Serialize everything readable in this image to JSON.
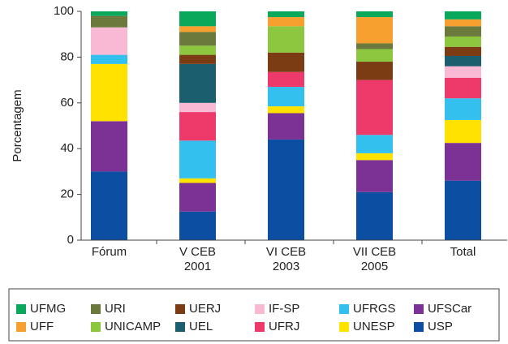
{
  "chart_data": {
    "type": "stacked_bar",
    "ylabel": "Porcentagem",
    "categories": [
      "Fórum",
      "V CEB 2001",
      "VI CEB 2003",
      "VII CEB 2005",
      "Total"
    ],
    "ylim": [
      0,
      100
    ],
    "yticks": [
      0,
      20,
      40,
      60,
      80,
      100
    ],
    "series": [
      {
        "name": "USP",
        "color": "#0b4ea2",
        "values": [
          30,
          12.5,
          44,
          21,
          26
        ]
      },
      {
        "name": "UFSCar",
        "color": "#7b3294",
        "values": [
          22,
          12.5,
          11.5,
          14,
          16.5
        ]
      },
      {
        "name": "UNESP",
        "color": "#ffe200",
        "values": [
          25,
          2,
          3,
          3,
          10
        ]
      },
      {
        "name": "UFRGS",
        "color": "#33c0ee",
        "values": [
          4,
          16.5,
          8.5,
          8,
          9.5
        ]
      },
      {
        "name": "UFRJ",
        "color": "#ee3a6a",
        "values": [
          0,
          12.5,
          6.5,
          24,
          9
        ]
      },
      {
        "name": "IF-SP",
        "color": "#f9b8d4",
        "values": [
          12,
          4,
          0,
          0,
          5
        ]
      },
      {
        "name": "UEL",
        "color": "#1b5e6e",
        "values": [
          0,
          17,
          0,
          0,
          4.5
        ]
      },
      {
        "name": "UERJ",
        "color": "#7b3c14",
        "values": [
          0,
          4,
          8.5,
          8,
          4
        ]
      },
      {
        "name": "UNICAMP",
        "color": "#8dc63f",
        "values": [
          0,
          4,
          11.5,
          5.5,
          4.5
        ]
      },
      {
        "name": "URI",
        "color": "#6b7a3c",
        "values": [
          5,
          6,
          0,
          2.5,
          4.5
        ]
      },
      {
        "name": "UFF",
        "color": "#f7a030",
        "values": [
          0,
          2.5,
          4,
          11.5,
          3
        ]
      },
      {
        "name": "UFMG",
        "color": "#0aa85a",
        "values": [
          2,
          6.5,
          2.5,
          2.5,
          3.5
        ]
      }
    ]
  }
}
